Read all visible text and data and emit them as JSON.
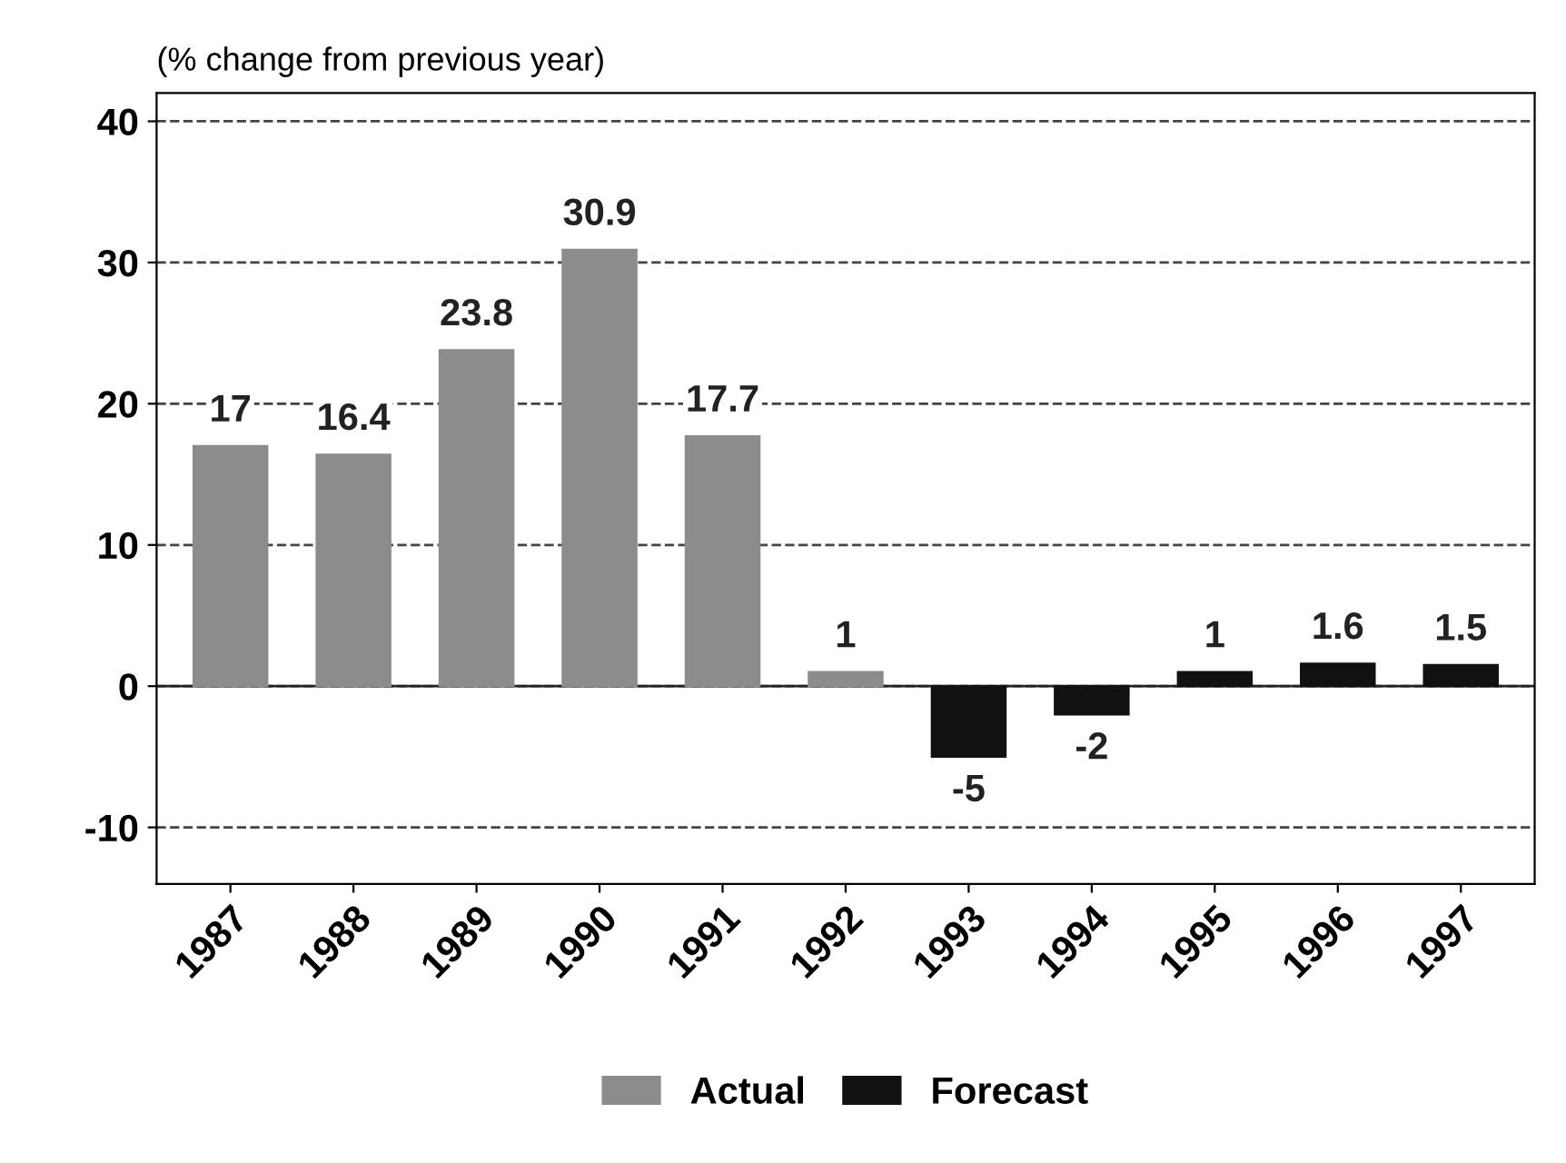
{
  "chart_data": {
    "type": "bar",
    "ylabel": "(% change from previous year)",
    "categories": [
      "1987",
      "1988",
      "1989",
      "1990",
      "1991",
      "1992",
      "1993",
      "1994",
      "1995",
      "1996",
      "1997"
    ],
    "series": [
      {
        "name": "Actual",
        "color": "#8c8c8c",
        "values": [
          17,
          16.4,
          23.8,
          30.9,
          17.7,
          1,
          null,
          null,
          null,
          null,
          null
        ]
      },
      {
        "name": "Forecast",
        "color": "#111111",
        "values": [
          null,
          null,
          null,
          null,
          null,
          null,
          -5,
          -2,
          1,
          1.6,
          1.5
        ]
      }
    ],
    "ylim": [
      -14,
      42
    ],
    "yticks": [
      -10,
      0,
      10,
      20,
      30,
      40
    ],
    "grid": "y",
    "legend": "bottom",
    "data_labels": true
  }
}
